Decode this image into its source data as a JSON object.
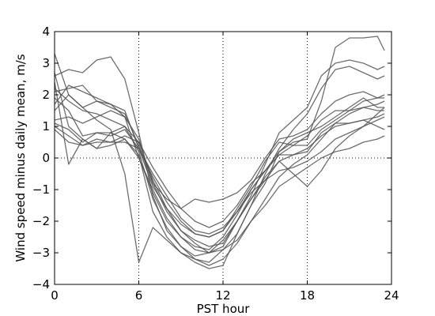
{
  "chart_data": {
    "type": "line",
    "title": "",
    "xlabel": "PST hour",
    "ylabel": "Wind speed minus daily mean, m/s",
    "xlim": [
      0,
      24
    ],
    "ylim": [
      -4,
      4
    ],
    "x_ticks": [
      0,
      6,
      12,
      18,
      24
    ],
    "y_ticks": [
      -4,
      -3,
      -2,
      -1,
      0,
      1,
      2,
      3,
      4
    ],
    "x_tick_labels": [
      "0",
      "6",
      "12",
      "18",
      "24"
    ],
    "y_tick_labels": [
      "−4",
      "−3",
      "−2",
      "−1",
      "0",
      "1",
      "2",
      "3",
      "4"
    ],
    "vertical_gridlines_at": [
      6,
      12,
      18
    ],
    "horizontal_reference_at": 0,
    "line_color": "#555555",
    "series": [
      {
        "x": [
          0,
          1,
          2,
          3,
          4,
          5,
          6,
          7,
          8,
          9,
          10,
          11,
          12,
          13,
          14,
          15,
          16,
          17,
          18,
          19,
          20,
          21,
          22,
          23,
          23.5
        ],
        "y": [
          2.7,
          1.0,
          0.6,
          0.3,
          0.4,
          0.6,
          0.1,
          -1.7,
          -2.5,
          -3.0,
          -3.2,
          -3.3,
          -2.9,
          -2.4,
          -1.5,
          -0.8,
          0.2,
          0.5,
          0.6,
          1.8,
          3.5,
          3.8,
          3.8,
          3.85,
          3.4
        ]
      },
      {
        "x": [
          0,
          1,
          2,
          3,
          4,
          5,
          6,
          7,
          8,
          9,
          10,
          11,
          12,
          13,
          14,
          15,
          16,
          17,
          18,
          19,
          20,
          21,
          22,
          23,
          23.5
        ],
        "y": [
          2.6,
          2.8,
          2.7,
          3.1,
          3.2,
          2.5,
          0.8,
          -1.2,
          -2.3,
          -2.8,
          -3.1,
          -3.0,
          -2.6,
          -2.0,
          -1.2,
          -0.2,
          0.8,
          1.2,
          1.6,
          2.6,
          3.0,
          3.1,
          3.0,
          2.8,
          2.9
        ]
      },
      {
        "x": [
          0,
          1,
          2,
          3,
          4,
          5,
          6,
          7,
          8,
          9,
          10,
          11,
          12,
          13,
          14,
          15,
          16,
          17,
          18,
          19,
          20,
          21,
          22,
          23,
          23.5
        ],
        "y": [
          3.3,
          2.0,
          1.6,
          1.2,
          0.9,
          -0.5,
          -3.3,
          -2.2,
          -2.6,
          -3.0,
          -3.3,
          -3.5,
          -3.4,
          -2.4,
          -1.5,
          -0.5,
          0.3,
          0.9,
          1.4,
          2.2,
          2.8,
          2.9,
          2.7,
          2.5,
          2.6
        ]
      },
      {
        "x": [
          0,
          1,
          2,
          3,
          4,
          5,
          6,
          7,
          8,
          9,
          10,
          11,
          12,
          13,
          14,
          15,
          16,
          17,
          18,
          19,
          20,
          21,
          22,
          23,
          23.5
        ],
        "y": [
          2.1,
          2.2,
          2.3,
          1.8,
          1.6,
          1.4,
          0.4,
          -0.8,
          -1.3,
          -1.6,
          -1.3,
          -1.4,
          -1.3,
          -1.1,
          -0.7,
          0.0,
          0.6,
          0.7,
          0.9,
          1.4,
          1.8,
          2.0,
          2.1,
          1.9,
          2.0
        ]
      },
      {
        "x": [
          0,
          1,
          2,
          3,
          4,
          5,
          6,
          7,
          8,
          9,
          10,
          11,
          12,
          13,
          14,
          15,
          16,
          17,
          18,
          19,
          20,
          21,
          22,
          23,
          23.5
        ],
        "y": [
          1.7,
          2.3,
          2.1,
          1.9,
          1.7,
          1.5,
          0.3,
          -0.9,
          -1.6,
          -2.1,
          -2.4,
          -2.5,
          -2.3,
          -1.6,
          -0.9,
          -0.1,
          0.5,
          0.4,
          0.7,
          1.2,
          1.5,
          1.5,
          1.6,
          1.5,
          1.5
        ]
      },
      {
        "x": [
          0,
          1,
          2,
          3,
          4,
          5,
          6,
          7,
          8,
          9,
          10,
          11,
          12,
          13,
          14,
          15,
          16,
          17,
          18,
          19,
          20,
          21,
          22,
          23,
          23.5
        ],
        "y": [
          1.5,
          2.0,
          1.6,
          1.8,
          1.7,
          1.3,
          0.0,
          -1.1,
          -2.0,
          -2.5,
          -2.8,
          -2.9,
          -2.5,
          -1.8,
          -1.0,
          -0.4,
          0.2,
          0.6,
          0.8,
          1.0,
          1.3,
          1.6,
          1.9,
          1.6,
          1.6
        ]
      },
      {
        "x": [
          0,
          1,
          2,
          3,
          4,
          5,
          6,
          7,
          8,
          9,
          10,
          11,
          12,
          13,
          14,
          15,
          16,
          17,
          18,
          19,
          20,
          21,
          22,
          23,
          23.5
        ],
        "y": [
          1.2,
          1.3,
          1.1,
          1.3,
          1.5,
          1.3,
          0.6,
          -0.8,
          -1.7,
          -2.3,
          -2.6,
          -2.8,
          -2.7,
          -2.0,
          -1.3,
          -0.7,
          -0.1,
          0.1,
          0.2,
          0.8,
          1.1,
          1.1,
          1.2,
          1.3,
          1.4
        ]
      },
      {
        "x": [
          0,
          1,
          2,
          3,
          4,
          5,
          6,
          7,
          8,
          9,
          10,
          11,
          12,
          13,
          14,
          15,
          16,
          17,
          18,
          19,
          20,
          21,
          22,
          23,
          23.5
        ],
        "y": [
          1.1,
          0.9,
          0.5,
          0.8,
          0.7,
          0.9,
          0.3,
          -0.6,
          -1.4,
          -2.0,
          -2.4,
          -2.5,
          -2.3,
          -1.7,
          -1.0,
          -0.4,
          0.1,
          0.4,
          0.4,
          0.9,
          1.2,
          1.5,
          1.8,
          1.9,
          1.9
        ]
      },
      {
        "x": [
          0,
          1,
          2,
          3,
          4,
          5,
          6,
          7,
          8,
          9,
          10,
          11,
          12,
          13,
          14,
          15,
          16,
          17,
          18,
          19,
          20,
          21,
          22,
          23,
          23.5
        ],
        "y": [
          1.0,
          0.7,
          0.4,
          0.6,
          0.5,
          0.7,
          0.5,
          -0.3,
          -1.0,
          -1.6,
          -2.0,
          -2.2,
          -2.0,
          -1.5,
          -0.8,
          -0.4,
          0.1,
          0.1,
          0.3,
          0.7,
          1.0,
          1.1,
          1.2,
          1.0,
          0.9
        ]
      },
      {
        "x": [
          0,
          1,
          2,
          3,
          4,
          5,
          6,
          7,
          8,
          9,
          10,
          11,
          12,
          13,
          14,
          15,
          16,
          17,
          18,
          19,
          20,
          21,
          22,
          23,
          23.5
        ],
        "y": [
          0.9,
          0.5,
          0.4,
          0.5,
          0.5,
          0.5,
          0.3,
          -0.5,
          -1.2,
          -1.9,
          -2.3,
          -2.4,
          -2.2,
          -1.7,
          -1.1,
          -0.7,
          -0.4,
          -0.3,
          -0.1,
          0.2,
          0.6,
          0.8,
          1.0,
          1.2,
          1.3
        ]
      },
      {
        "x": [
          0,
          1,
          2,
          3,
          4,
          5,
          6,
          7,
          8,
          9,
          10,
          11,
          12,
          13,
          14,
          15,
          16,
          17,
          18,
          19,
          20,
          21,
          22,
          23,
          23.5
        ],
        "y": [
          2.4,
          -0.2,
          0.6,
          0.3,
          0.8,
          1.0,
          0.5,
          -0.7,
          -1.6,
          -2.3,
          -2.7,
          -3.0,
          -2.9,
          -2.6,
          -2.0,
          -1.5,
          -0.9,
          -0.6,
          -0.3,
          0.0,
          0.2,
          0.3,
          0.5,
          0.6,
          0.7
        ]
      },
      {
        "x": [
          0,
          1,
          2,
          3,
          4,
          5,
          6,
          7,
          8,
          9,
          10,
          11,
          12,
          13,
          14,
          15,
          16,
          17,
          18,
          19,
          20,
          21,
          22,
          23,
          23.5
        ],
        "y": [
          1.9,
          1.5,
          0.7,
          0.8,
          0.8,
          0.6,
          0.0,
          -1.0,
          -1.9,
          -2.5,
          -2.9,
          -3.0,
          -2.8,
          -2.0,
          -1.3,
          -0.6,
          -0.1,
          -0.5,
          -0.9,
          -0.4,
          0.3,
          0.7,
          1.0,
          1.4,
          1.6
        ]
      },
      {
        "x": [
          0,
          1,
          2,
          3,
          4,
          5,
          6,
          7,
          8,
          9,
          10,
          11,
          12,
          13,
          14,
          15,
          16,
          17,
          18,
          19,
          20,
          21,
          22,
          23,
          23.5
        ],
        "y": [
          2.2,
          1.8,
          1.5,
          1.4,
          1.2,
          1.0,
          0.2,
          -1.3,
          -2.2,
          -2.8,
          -3.2,
          -3.4,
          -3.2,
          -2.7,
          -2.0,
          -1.3,
          -0.6,
          -0.2,
          0.1,
          0.6,
          1.1,
          1.4,
          1.6,
          1.7,
          1.8
        ]
      }
    ]
  }
}
